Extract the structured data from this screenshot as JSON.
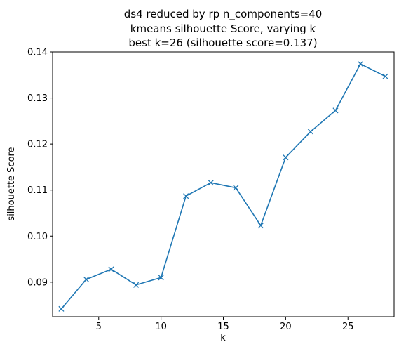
{
  "chart_data": {
    "type": "line",
    "title_lines": [
      "ds4 reduced by rp n_components=40",
      "kmeans silhouette Score, varying k",
      "best k=26 (silhouette score=0.137)"
    ],
    "xlabel": "k",
    "ylabel": "silhouette Score",
    "xlim": [
      1.3,
      28.7
    ],
    "ylim": [
      0.0825,
      0.14
    ],
    "xticks": [
      5,
      10,
      15,
      20,
      25
    ],
    "xtick_labels": [
      "5",
      "10",
      "15",
      "20",
      "25"
    ],
    "yticks": [
      0.09,
      0.1,
      0.11,
      0.12,
      0.13,
      0.14
    ],
    "ytick_labels": [
      "0.09",
      "0.10",
      "0.11",
      "0.12",
      "0.13",
      "0.14"
    ],
    "grid": false,
    "marker": "x",
    "line_color": "#1f77b4",
    "x": [
      2,
      4,
      6,
      8,
      10,
      12,
      14,
      16,
      18,
      20,
      22,
      24,
      26,
      28
    ],
    "series": [
      {
        "values": [
          0.0842,
          0.0906,
          0.0928,
          0.0894,
          0.091,
          0.1087,
          0.1116,
          0.1105,
          0.1023,
          0.1171,
          0.1227,
          0.1273,
          0.1374,
          0.1347
        ]
      }
    ]
  }
}
